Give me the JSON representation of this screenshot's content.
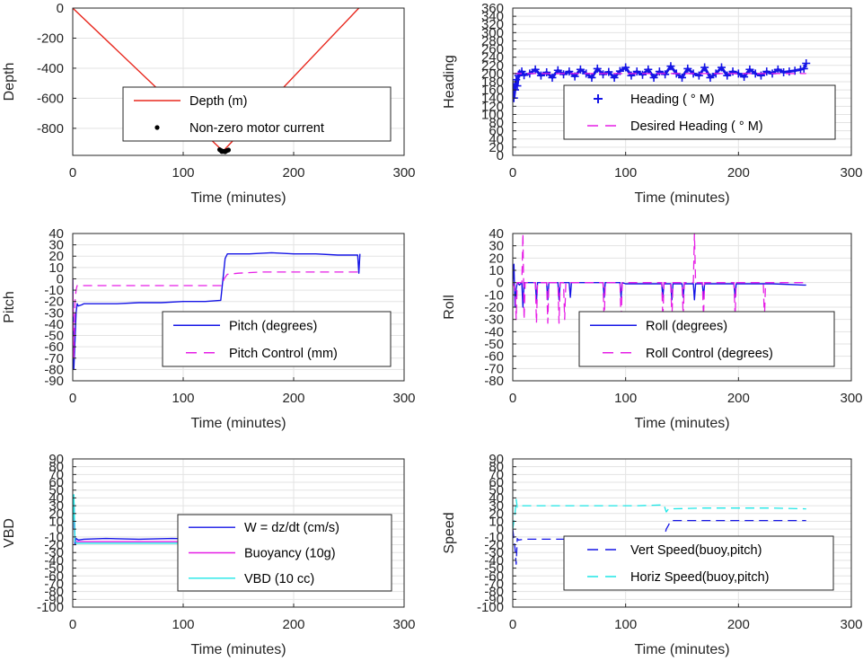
{
  "chart_data": [
    {
      "id": "depth",
      "type": "line",
      "xlabel": "Time (minutes)",
      "ylabel": "Depth",
      "xlim": [
        0,
        300
      ],
      "ylim": [
        -980,
        0
      ],
      "xticks": [
        0,
        100,
        200,
        300
      ],
      "yticks": [
        -800,
        -600,
        -400,
        -200,
        0
      ],
      "grid": true,
      "legend_position": "center-bottom",
      "series": [
        {
          "name": "Depth (m)",
          "style": "line",
          "color": "#e8281e",
          "x": [
            0,
            136,
            259
          ],
          "y": [
            0,
            -952,
            0
          ]
        },
        {
          "name": "Non-zero motor current",
          "style": "dots",
          "color": "#000000",
          "x": [
            133,
            134,
            135,
            136,
            137,
            138,
            139,
            140,
            141,
            135,
            138
          ],
          "y": [
            -942,
            -947,
            -950,
            -953,
            -954,
            -952,
            -950,
            -947,
            -944,
            -955,
            -956
          ]
        }
      ]
    },
    {
      "id": "heading",
      "type": "scatter",
      "xlabel": "Time (minutes)",
      "ylabel": "Heading",
      "xlim": [
        0,
        300
      ],
      "ylim": [
        0,
        360
      ],
      "xticks": [
        0,
        100,
        200,
        300
      ],
      "yticks": [
        0,
        20,
        40,
        60,
        80,
        100,
        120,
        140,
        160,
        180,
        200,
        220,
        240,
        260,
        280,
        300,
        320,
        340,
        360
      ],
      "grid": true,
      "legend_position": "center-bottom",
      "series": [
        {
          "name": "Heading (  ° M)",
          "style": "plus",
          "color": "#1515e6",
          "x": [
            0,
            1,
            2,
            3,
            4,
            5,
            6,
            8,
            10,
            15,
            20,
            25,
            30,
            35,
            40,
            45,
            50,
            55,
            60,
            65,
            70,
            75,
            80,
            85,
            90,
            95,
            100,
            105,
            110,
            115,
            120,
            125,
            130,
            135,
            140,
            145,
            150,
            155,
            160,
            165,
            170,
            175,
            180,
            185,
            190,
            195,
            200,
            205,
            210,
            215,
            220,
            225,
            230,
            235,
            240,
            245,
            250,
            255,
            258,
            260
          ],
          "y": [
            175,
            140,
            160,
            185,
            170,
            195,
            200,
            205,
            196,
            200,
            210,
            195,
            203,
            190,
            208,
            198,
            205,
            193,
            210,
            200,
            190,
            212,
            198,
            204,
            190,
            206,
            215,
            195,
            205,
            197,
            210,
            190,
            205,
            198,
            218,
            200,
            190,
            212,
            200,
            195,
            215,
            190,
            200,
            215,
            195,
            205,
            200,
            192,
            210,
            200,
            195,
            205,
            200,
            210,
            203,
            205,
            207,
            210,
            212,
            225
          ]
        },
        {
          "name": "Desired Heading (     ° M)",
          "style": "dash",
          "color": "#e61ee6",
          "x": [
            0,
            260
          ],
          "y": [
            200,
            200
          ]
        }
      ]
    },
    {
      "id": "pitch",
      "type": "line",
      "xlabel": "Time (minutes)",
      "ylabel": "Pitch",
      "xlim": [
        0,
        300
      ],
      "ylim": [
        -90,
        40
      ],
      "xticks": [
        0,
        100,
        200,
        300
      ],
      "yticks": [
        -90,
        -80,
        -70,
        -60,
        -50,
        -40,
        -30,
        -20,
        -10,
        0,
        10,
        20,
        30,
        40
      ],
      "grid": true,
      "legend_position": "center-bottom",
      "series": [
        {
          "name": "Pitch (degrees)",
          "style": "line",
          "color": "#1515e6",
          "x": [
            0,
            1,
            2,
            3,
            4,
            5,
            8,
            10,
            20,
            40,
            60,
            80,
            100,
            120,
            134,
            136,
            138,
            140,
            160,
            180,
            200,
            220,
            240,
            258,
            259,
            260
          ],
          "y": [
            0,
            -80,
            -55,
            -30,
            -22,
            -24,
            -23,
            -22,
            -22,
            -22,
            -21,
            -21,
            -20,
            -20,
            -19,
            0,
            18,
            22,
            22,
            23,
            22,
            22,
            21,
            21,
            5,
            22
          ]
        },
        {
          "name": "Pitch Control (mm)",
          "style": "dash",
          "color": "#e61ee6",
          "x": [
            0,
            1,
            2,
            3,
            4,
            5,
            135,
            137,
            140,
            150,
            170,
            200,
            230,
            260
          ],
          "y": [
            0,
            -70,
            -20,
            -10,
            -6,
            -6,
            -6,
            0,
            4,
            5,
            6,
            6,
            6,
            6
          ]
        }
      ]
    },
    {
      "id": "roll",
      "type": "line",
      "xlabel": "Time (minutes)",
      "ylabel": "Roll",
      "xlim": [
        0,
        300
      ],
      "ylim": [
        -80,
        40
      ],
      "xticks": [
        0,
        100,
        200,
        300
      ],
      "yticks": [
        -80,
        -70,
        -60,
        -50,
        -40,
        -30,
        -20,
        -10,
        0,
        10,
        20,
        30,
        40
      ],
      "grid": true,
      "legend_position": "center-bottom",
      "series": [
        {
          "name": "Roll (degrees)",
          "style": "line",
          "color": "#1515e6",
          "x": [
            0,
            1,
            2,
            3,
            4,
            6,
            8,
            9,
            10,
            20,
            21,
            22,
            30,
            31,
            32,
            40,
            41,
            42,
            50,
            51,
            52,
            80,
            81,
            82,
            95,
            96,
            97,
            100,
            132,
            133,
            134,
            140,
            141,
            142,
            150,
            151,
            152,
            160,
            161,
            162,
            168,
            169,
            170,
            196,
            197,
            198,
            200,
            230,
            258,
            260
          ],
          "y": [
            0,
            15,
            -20,
            -5,
            0,
            -2,
            0,
            -20,
            0,
            0,
            -15,
            0,
            0,
            -14,
            0,
            0,
            -14,
            0,
            0,
            -12,
            0,
            0,
            -12,
            0,
            0,
            -12,
            0,
            -1,
            -1,
            -12,
            -1,
            -1,
            -14,
            -1,
            -1,
            -12,
            -1,
            -1,
            -14,
            -1,
            -1,
            -12,
            -1,
            -1,
            -12,
            -1,
            -1,
            -1,
            -2,
            -2
          ]
        },
        {
          "name": "Roll Control (degrees)",
          "style": "dash",
          "color": "#e61ee6",
          "x": [
            0,
            2,
            3,
            4,
            8,
            9,
            10,
            11,
            20,
            21,
            22,
            30,
            31,
            32,
            40,
            41,
            42,
            45,
            46,
            47,
            80,
            81,
            82,
            95,
            96,
            97,
            132,
            133,
            134,
            140,
            141,
            142,
            150,
            151,
            152,
            160,
            161,
            162,
            163,
            168,
            169,
            170,
            196,
            197,
            198,
            222,
            223,
            224,
            260
          ],
          "y": [
            0,
            -5,
            -30,
            0,
            0,
            40,
            -30,
            0,
            0,
            -33,
            0,
            0,
            -33,
            0,
            0,
            -33,
            0,
            0,
            -30,
            0,
            0,
            -33,
            0,
            0,
            -33,
            0,
            0,
            -30,
            0,
            0,
            -30,
            0,
            0,
            -28,
            0,
            0,
            40,
            0,
            0,
            0,
            -28,
            0,
            0,
            -28,
            0,
            0,
            -30,
            0,
            0
          ]
        }
      ]
    },
    {
      "id": "vbd",
      "type": "line",
      "xlabel": "Time (minutes)",
      "ylabel": "VBD",
      "xlim": [
        0,
        300
      ],
      "ylim": [
        -100,
        90
      ],
      "xticks": [
        0,
        100,
        200,
        300
      ],
      "yticks": [
        -100,
        -90,
        -80,
        -70,
        -60,
        -50,
        -40,
        -30,
        -20,
        -10,
        0,
        10,
        20,
        30,
        40,
        50,
        60,
        70,
        80,
        90
      ],
      "grid": true,
      "legend_position": "center-bottom",
      "series": [
        {
          "name": "W = dz/dt (cm/s)",
          "style": "line",
          "color": "#1515e6",
          "x": [
            0,
            1,
            2,
            3,
            5,
            10,
            30,
            60,
            90,
            120,
            134,
            136,
            138,
            140,
            170,
            200,
            230,
            258,
            259,
            260
          ],
          "y": [
            0,
            40,
            -20,
            -12,
            -14,
            -13,
            -12,
            -13,
            -12,
            -13,
            -13,
            0,
            10,
            15,
            15,
            15,
            14,
            15,
            8,
            15
          ]
        },
        {
          "name": "Buoyancy (10g)",
          "style": "line",
          "color": "#e61ee6",
          "x": [
            0,
            1,
            2,
            3,
            5,
            135,
            137,
            140,
            260
          ],
          "y": [
            0,
            30,
            -14,
            -16,
            -16,
            -16,
            0,
            12,
            12
          ]
        },
        {
          "name": "VBD (10 cc)",
          "style": "line",
          "color": "#1ee6e6",
          "x": [
            0,
            1,
            2,
            3,
            5,
            135,
            137,
            140,
            260
          ],
          "y": [
            0,
            44,
            -15,
            -18,
            -18,
            -18,
            0,
            16,
            16
          ]
        }
      ]
    },
    {
      "id": "speed",
      "type": "line",
      "xlabel": "Time (minutes)",
      "ylabel": "Speed",
      "xlim": [
        0,
        300
      ],
      "ylim": [
        -100,
        90
      ],
      "xticks": [
        0,
        100,
        200,
        300
      ],
      "yticks": [
        -100,
        -90,
        -80,
        -70,
        -60,
        -50,
        -40,
        -30,
        -20,
        -10,
        0,
        10,
        20,
        30,
        40,
        50,
        60,
        70,
        80,
        90
      ],
      "grid": true,
      "legend_position": "center-bottom",
      "series": [
        {
          "name": "Vert Speed(buoy,pitch)",
          "style": "dash",
          "color": "#1515e6",
          "x": [
            0,
            2,
            3,
            4,
            5,
            10,
            60,
            110,
            134,
            136,
            138,
            140,
            170,
            200,
            230,
            260
          ],
          "y": [
            0,
            -25,
            -45,
            -12,
            -14,
            -13,
            -13,
            -13,
            -12,
            0,
            5,
            11,
            11,
            11,
            11,
            11
          ]
        },
        {
          "name": "Horiz Speed(buoy,pitch)",
          "style": "dash",
          "color": "#1ee6e6",
          "x": [
            0,
            2,
            3,
            4,
            6,
            10,
            60,
            110,
            134,
            136,
            138,
            140,
            170,
            200,
            230,
            260
          ],
          "y": [
            0,
            20,
            38,
            28,
            30,
            30,
            30,
            30,
            31,
            22,
            26,
            26,
            27,
            27,
            27,
            26
          ]
        }
      ]
    }
  ]
}
